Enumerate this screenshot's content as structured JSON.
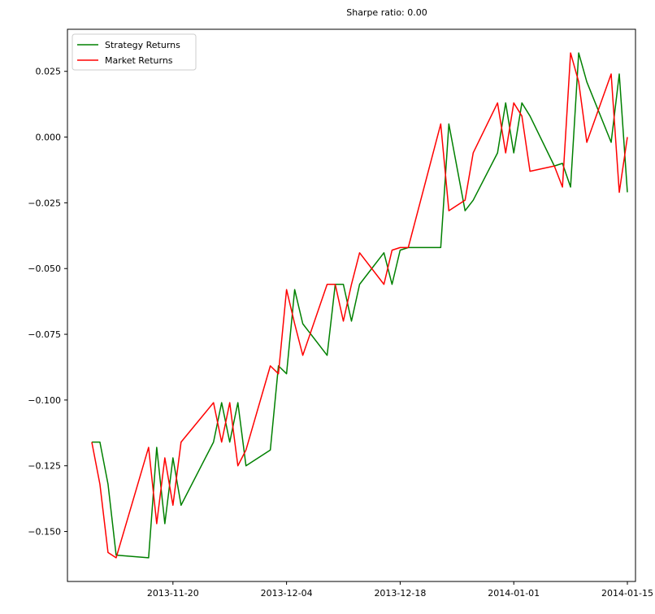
{
  "chart_data": {
    "type": "line",
    "title": "Sharpe ratio: 0.00",
    "xlabel": "",
    "ylabel": "",
    "x_ticks": [
      "2013-11-20",
      "2013-12-04",
      "2013-12-18",
      "2014-01-01",
      "2014-01-15"
    ],
    "y_ticks": [
      "0.025",
      "0.000",
      "−0.025",
      "−0.050",
      "−0.075",
      "−0.100",
      "−0.125",
      "−0.150"
    ],
    "xlim": [
      "2013-11-07",
      "2014-01-16"
    ],
    "ylim": [
      -0.169,
      0.041
    ],
    "grid": false,
    "legend_position": "top-left",
    "series": [
      {
        "name": "Strategy Returns",
        "color": "#008000",
        "points": [
          [
            "2013-11-10",
            -0.116
          ],
          [
            "2013-11-11",
            -0.116
          ],
          [
            "2013-11-12",
            -0.132
          ],
          [
            "2013-11-13",
            -0.159
          ],
          [
            "2013-11-17",
            -0.16
          ],
          [
            "2013-11-18",
            -0.118
          ],
          [
            "2013-11-19",
            -0.147
          ],
          [
            "2013-11-20",
            -0.122
          ],
          [
            "2013-11-21",
            -0.14
          ],
          [
            "2013-11-25",
            -0.116
          ],
          [
            "2013-11-26",
            -0.101
          ],
          [
            "2013-11-27",
            -0.116
          ],
          [
            "2013-11-28",
            -0.101
          ],
          [
            "2013-11-29",
            -0.125
          ],
          [
            "2013-12-02",
            -0.119
          ],
          [
            "2013-12-03",
            -0.087
          ],
          [
            "2013-12-04",
            -0.09
          ],
          [
            "2013-12-05",
            -0.058
          ],
          [
            "2013-12-06",
            -0.071
          ],
          [
            "2013-12-09",
            -0.083
          ],
          [
            "2013-12-10",
            -0.056
          ],
          [
            "2013-12-11",
            -0.056
          ],
          [
            "2013-12-12",
            -0.07
          ],
          [
            "2013-12-13",
            -0.056
          ],
          [
            "2013-12-16",
            -0.044
          ],
          [
            "2013-12-17",
            -0.056
          ],
          [
            "2013-12-18",
            -0.043
          ],
          [
            "2013-12-19",
            -0.042
          ],
          [
            "2013-12-23",
            -0.042
          ],
          [
            "2013-12-24",
            0.005
          ],
          [
            "2013-12-26",
            -0.028
          ],
          [
            "2013-12-27",
            -0.024
          ],
          [
            "2013-12-30",
            -0.006
          ],
          [
            "2013-12-31",
            0.013
          ],
          [
            "2014-01-01",
            -0.006
          ],
          [
            "2014-01-02",
            0.013
          ],
          [
            "2014-01-03",
            0.008
          ],
          [
            "2014-01-06",
            -0.011
          ],
          [
            "2014-01-07",
            -0.01
          ],
          [
            "2014-01-08",
            -0.019
          ],
          [
            "2014-01-09",
            0.032
          ],
          [
            "2014-01-10",
            0.021
          ],
          [
            "2014-01-13",
            -0.002
          ],
          [
            "2014-01-14",
            0.024
          ],
          [
            "2014-01-15",
            -0.021
          ]
        ]
      },
      {
        "name": "Market Returns",
        "color": "#ff0000",
        "points": [
          [
            "2013-11-10",
            -0.116
          ],
          [
            "2013-11-11",
            -0.132
          ],
          [
            "2013-11-12",
            -0.158
          ],
          [
            "2013-11-13",
            -0.16
          ],
          [
            "2013-11-17",
            -0.118
          ],
          [
            "2013-11-18",
            -0.147
          ],
          [
            "2013-11-19",
            -0.122
          ],
          [
            "2013-11-20",
            -0.14
          ],
          [
            "2013-11-21",
            -0.116
          ],
          [
            "2013-11-25",
            -0.101
          ],
          [
            "2013-11-26",
            -0.116
          ],
          [
            "2013-11-27",
            -0.101
          ],
          [
            "2013-11-28",
            -0.125
          ],
          [
            "2013-11-29",
            -0.119
          ],
          [
            "2013-12-02",
            -0.087
          ],
          [
            "2013-12-03",
            -0.09
          ],
          [
            "2013-12-04",
            -0.058
          ],
          [
            "2013-12-05",
            -0.071
          ],
          [
            "2013-12-06",
            -0.083
          ],
          [
            "2013-12-09",
            -0.056
          ],
          [
            "2013-12-10",
            -0.056
          ],
          [
            "2013-12-11",
            -0.07
          ],
          [
            "2013-12-12",
            -0.056
          ],
          [
            "2013-12-13",
            -0.044
          ],
          [
            "2013-12-16",
            -0.056
          ],
          [
            "2013-12-17",
            -0.043
          ],
          [
            "2013-12-18",
            -0.042
          ],
          [
            "2013-12-19",
            -0.042
          ],
          [
            "2013-12-23",
            0.005
          ],
          [
            "2013-12-24",
            -0.028
          ],
          [
            "2013-12-26",
            -0.024
          ],
          [
            "2013-12-27",
            -0.006
          ],
          [
            "2013-12-30",
            0.013
          ],
          [
            "2013-12-31",
            -0.006
          ],
          [
            "2014-01-01",
            0.013
          ],
          [
            "2014-01-02",
            0.008
          ],
          [
            "2014-01-03",
            -0.013
          ],
          [
            "2014-01-06",
            -0.011
          ],
          [
            "2014-01-07",
            -0.019
          ],
          [
            "2014-01-08",
            0.032
          ],
          [
            "2014-01-09",
            0.021
          ],
          [
            "2014-01-10",
            -0.002
          ],
          [
            "2014-01-13",
            0.024
          ],
          [
            "2014-01-14",
            -0.021
          ],
          [
            "2014-01-15",
            0.0
          ]
        ]
      }
    ]
  }
}
